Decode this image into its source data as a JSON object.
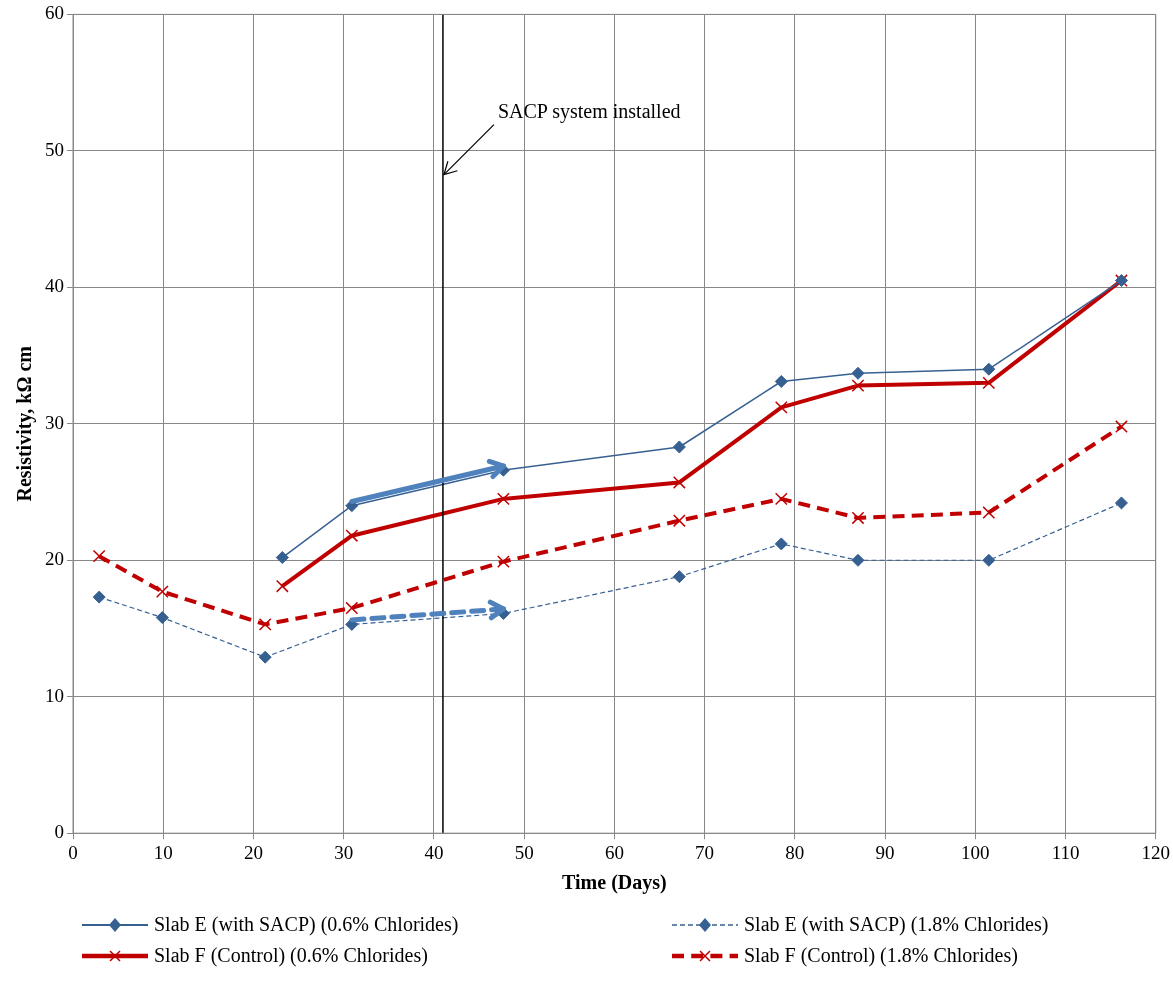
{
  "chart_data": {
    "type": "line",
    "xlabel": "Time (Days)",
    "ylabel": "Resistivity, kΩ cm",
    "xlim": [
      0,
      120
    ],
    "xticks": [
      0,
      10,
      20,
      30,
      40,
      50,
      60,
      70,
      80,
      90,
      100,
      110,
      120
    ],
    "ylim": [
      0,
      60
    ],
    "yticks": [
      0,
      10,
      20,
      30,
      40,
      50,
      60
    ],
    "grid": true,
    "legend": "bottom",
    "ref_lines": [
      {
        "axis": "x",
        "value": 41,
        "label": "SACP system installed",
        "color": "#000000"
      }
    ],
    "series": [
      {
        "name": "Slab E (with SACP) (0.6% Chlorides)",
        "color": "#376092",
        "marker": "diamond",
        "line_style": "solid",
        "x": [
          23.2,
          30.9,
          47.7,
          67.2,
          78.5,
          87.0,
          101.5,
          116.2
        ],
        "values": [
          20.2,
          24.0,
          26.6,
          28.3,
          33.1,
          33.7,
          34.0,
          40.5
        ]
      },
      {
        "name": "Slab E (with SACP) (1.8% Chlorides)",
        "color": "#376092",
        "marker": "diamond",
        "line_style": "dashed",
        "x": [
          2.9,
          9.9,
          21.3,
          30.9,
          47.7,
          67.2,
          78.5,
          87.0,
          101.5,
          116.2
        ],
        "values": [
          17.3,
          15.8,
          12.9,
          15.3,
          16.1,
          18.8,
          21.2,
          20.0,
          20.0,
          24.2
        ]
      },
      {
        "name": "Slab F (Control) (0.6% Chlorides)",
        "color": "#c00000",
        "marker": "cross",
        "line_style": "solid",
        "x": [
          23.2,
          30.9,
          47.7,
          67.2,
          78.5,
          87.0,
          101.5,
          116.2
        ],
        "values": [
          18.1,
          21.8,
          24.5,
          25.7,
          31.2,
          32.8,
          33.0,
          40.5
        ]
      },
      {
        "name": "Slab F (Control) (1.8% Chlorides)",
        "color": "#c00000",
        "marker": "cross",
        "line_style": "dashed",
        "x": [
          2.9,
          9.9,
          21.3,
          30.9,
          47.7,
          67.2,
          78.5,
          87.0,
          101.5,
          116.2
        ],
        "values": [
          20.3,
          17.7,
          15.3,
          16.5,
          19.9,
          22.9,
          24.5,
          23.1,
          23.5,
          29.8
        ]
      }
    ]
  }
}
